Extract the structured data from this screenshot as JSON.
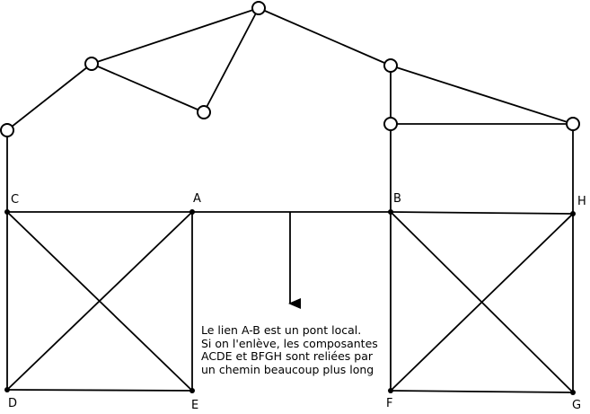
{
  "labels": {
    "A": "A",
    "B": "B",
    "C": "C",
    "D": "D",
    "E": "E",
    "F": "F",
    "G": "G",
    "H": "H"
  },
  "caption": [
    "Le lien A-B est un pont local.",
    "Si on l'enlève, les composantes",
    "ACDE et BFGH sont reliées par",
    "un chemin beaucoup plus long"
  ]
}
